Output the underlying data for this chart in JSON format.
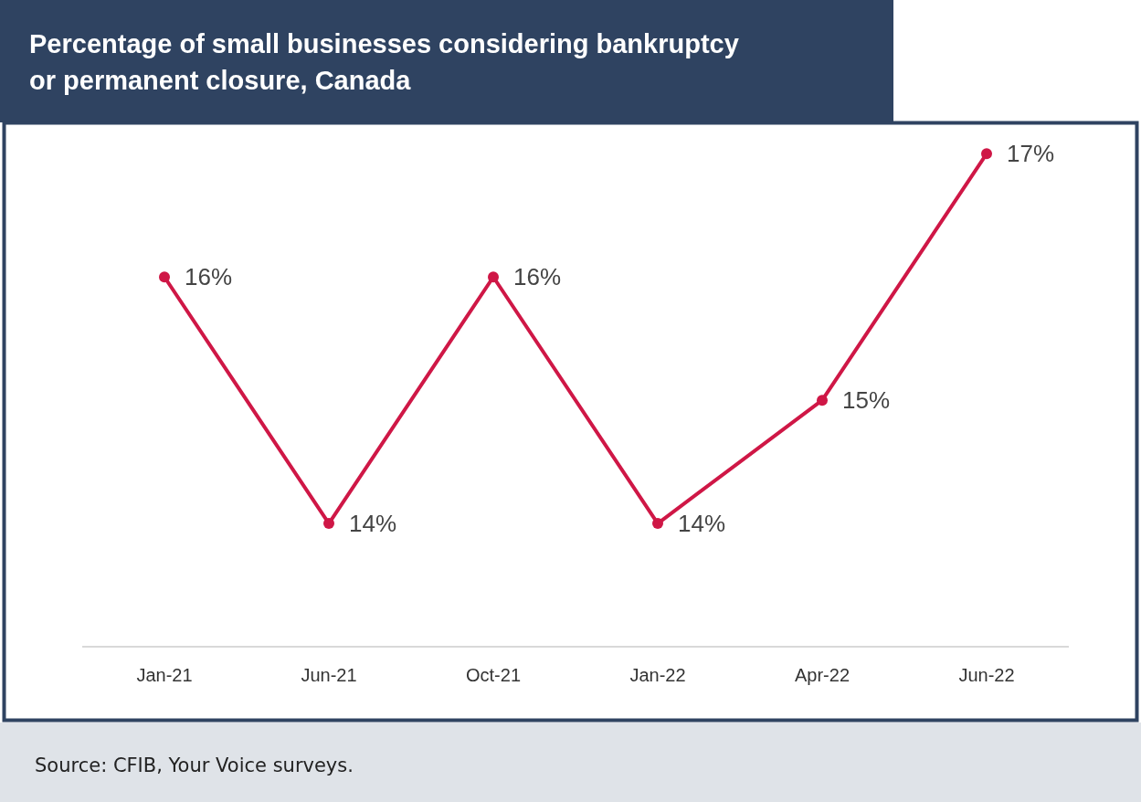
{
  "chart_data": {
    "type": "line",
    "title": "Percentage of small businesses considering bankruptcy or permanent closure, Canada",
    "categories": [
      "Jan-21",
      "Jun-21",
      "Oct-21",
      "Jan-22",
      "Apr-22",
      "Jun-22"
    ],
    "series": [
      {
        "color": "#cf1746",
        "values": [
          16,
          14,
          16,
          14,
          15,
          17
        ],
        "value_labels": [
          "16%",
          "14%",
          "16%",
          "14%",
          "15%",
          "17%"
        ]
      }
    ],
    "marker": "circle",
    "line_style": "solid",
    "tick_labels": "x",
    "annotations": [
      "Source: CFIB, Your Voice surveys."
    ]
  }
}
